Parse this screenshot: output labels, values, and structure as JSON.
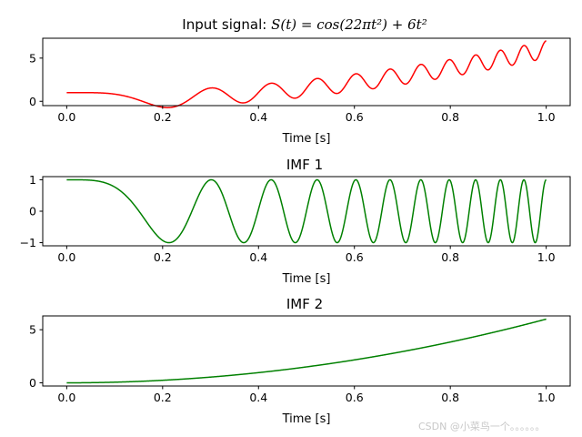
{
  "chart_data": [
    {
      "type": "line",
      "title_prefix": "Input signal: ",
      "title_math": "S(t) = cos(22πt²) + 6t²",
      "xlabel": "Time [s]",
      "ylabel": "",
      "xlim": [
        -0.05,
        1.05
      ],
      "ylim": [
        -0.5,
        7.3
      ],
      "x_ticks": [
        0.0,
        0.2,
        0.4,
        0.6,
        0.8,
        1.0
      ],
      "x_tick_labels": [
        "0.0",
        "0.2",
        "0.4",
        "0.6",
        "0.8",
        "1.0"
      ],
      "y_ticks": [
        0,
        5
      ],
      "y_tick_labels": [
        "0",
        "5"
      ],
      "series": [
        {
          "name": "S(t)",
          "color": "#ff0000",
          "formula": "cos(22*pi*t^2) + 6*t^2",
          "x_range": [
            0,
            1
          ]
        }
      ]
    },
    {
      "type": "line",
      "title": "IMF 1",
      "xlabel": "Time [s]",
      "ylabel": "",
      "xlim": [
        -0.05,
        1.05
      ],
      "ylim": [
        -1.1,
        1.1
      ],
      "x_ticks": [
        0.0,
        0.2,
        0.4,
        0.6,
        0.8,
        1.0
      ],
      "x_tick_labels": [
        "0.0",
        "0.2",
        "0.4",
        "0.6",
        "0.8",
        "1.0"
      ],
      "y_ticks": [
        -1,
        0,
        1
      ],
      "y_tick_labels": [
        "−1",
        "0",
        "1"
      ],
      "series": [
        {
          "name": "IMF 1",
          "color": "#008000",
          "formula": "cos(22*pi*t^2)",
          "x_range": [
            0,
            1
          ]
        }
      ]
    },
    {
      "type": "line",
      "title": "IMF 2",
      "xlabel": "Time [s]",
      "ylabel": "",
      "xlim": [
        -0.05,
        1.05
      ],
      "ylim": [
        -0.3,
        6.3
      ],
      "x_ticks": [
        0.0,
        0.2,
        0.4,
        0.6,
        0.8,
        1.0
      ],
      "x_tick_labels": [
        "0.0",
        "0.2",
        "0.4",
        "0.6",
        "0.8",
        "1.0"
      ],
      "y_ticks": [
        0,
        5
      ],
      "y_tick_labels": [
        "0",
        "5"
      ],
      "series": [
        {
          "name": "IMF 2",
          "color": "#008000",
          "formula": "6*t^2",
          "x_range": [
            0,
            1
          ]
        }
      ]
    }
  ],
  "watermark": "CSDN @小菜鸟一个。。。。。。"
}
